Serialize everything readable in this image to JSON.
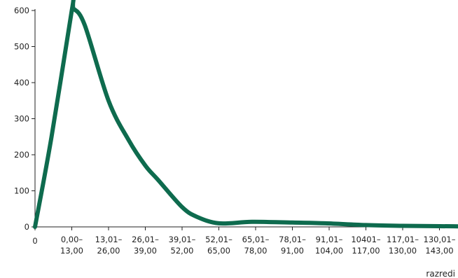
{
  "chart_data": {
    "type": "line",
    "title": "",
    "xlabel": "razredi",
    "ylabel": "",
    "ylim": [
      0,
      600
    ],
    "yticks": [
      0,
      100,
      200,
      300,
      400,
      500,
      600
    ],
    "origin_label": "0",
    "categories": [
      [
        "0,00–",
        "13,00"
      ],
      [
        "13,01–",
        "26,00"
      ],
      [
        "26,01–",
        "39,00"
      ],
      [
        "39,01–",
        "52,00"
      ],
      [
        "52,01–",
        "65,00"
      ],
      [
        "65,01–",
        "78,00"
      ],
      [
        "78,01–",
        "91,00"
      ],
      [
        "91,01–",
        "104,00"
      ],
      [
        "10401–",
        "117,00"
      ],
      [
        "117,01–",
        "130,00"
      ],
      [
        "130,01–",
        "143,00"
      ]
    ],
    "series": [
      {
        "color": "#0e6b4e",
        "x": [
          0,
          0.45,
          1,
          1.05,
          1.35,
          2,
          2.55,
          3,
          3.35,
          4,
          4.4,
          5,
          5.9,
          7,
          7.9,
          9,
          10,
          11,
          12
        ],
        "values": [
          0,
          250,
          600,
          605,
          560,
          350,
          240,
          170,
          130,
          55,
          28,
          10,
          14,
          12,
          10,
          5,
          3,
          2,
          1
        ]
      }
    ],
    "grid": false,
    "legend": "none"
  }
}
